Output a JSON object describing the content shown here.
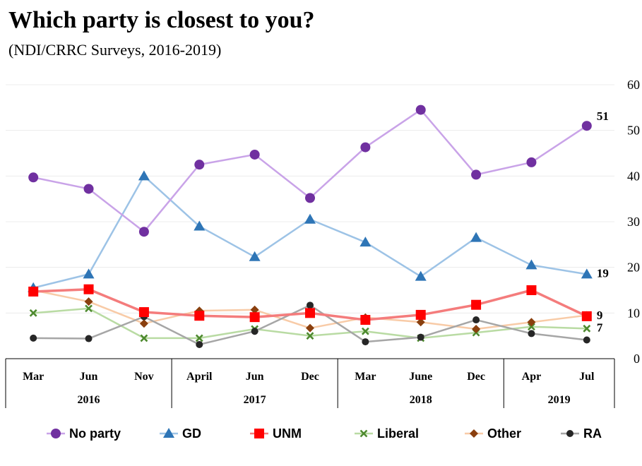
{
  "chart_data": {
    "type": "line",
    "title": "Which party is closest to you?",
    "subtitle": "(NDI/CRRC Surveys, 2016-2019)",
    "xlabel": "",
    "ylabel": "",
    "ylim": [
      0,
      60
    ],
    "yticks": [
      0,
      10,
      20,
      30,
      40,
      50,
      60
    ],
    "grid": true,
    "legend_position": "bottom",
    "categories": [
      "Mar",
      "Jun",
      "Nov",
      "April",
      "Jun",
      "Dec",
      "Mar",
      "June",
      "Dec",
      "Apr",
      "Jul"
    ],
    "year_groups": [
      {
        "label": "2016",
        "count": 3
      },
      {
        "label": "2017",
        "count": 3
      },
      {
        "label": "2018",
        "count": 3
      },
      {
        "label": "2019",
        "count": 2
      }
    ],
    "series": [
      {
        "name": "Liberal",
        "color": "#b9dba3",
        "marker_color": "#4e8a2f",
        "marker": "x",
        "values": [
          10,
          11,
          4.5,
          4.5,
          6.5,
          5,
          6,
          4.5,
          5.7,
          7,
          6.6
        ],
        "end_label": "7"
      },
      {
        "name": "Other",
        "color": "#f8cba7",
        "marker_color": "#8a3f0e",
        "marker": "diamond",
        "values": [
          15,
          12.5,
          7.7,
          10.5,
          10.7,
          6.7,
          9,
          8,
          6.5,
          8,
          9.5
        ],
        "end_label": ""
      },
      {
        "name": "RA",
        "color": "#a6a6a6",
        "marker_color": "#262626",
        "marker": "circle-small",
        "values": [
          4.5,
          4.4,
          9.2,
          3.1,
          6,
          11.7,
          3.7,
          4.7,
          8.5,
          5.5,
          4.1
        ],
        "end_label": ""
      },
      {
        "name": "GD",
        "color": "#9dc3e6",
        "marker_color": "#2e75b6",
        "marker": "triangle",
        "values": [
          15.5,
          18.5,
          40,
          29,
          22.3,
          30.5,
          25.5,
          18,
          26.5,
          20.5,
          18.5
        ],
        "end_label": "19"
      },
      {
        "name": "UNM",
        "color": "#f47c7c",
        "marker_color": "#ff0000",
        "marker": "square",
        "values": [
          14.7,
          15.2,
          10.2,
          9.4,
          9.1,
          10,
          8.5,
          9.6,
          11.8,
          15,
          9.3
        ],
        "end_label": "9"
      },
      {
        "name": "No party",
        "color": "#c9a3e8",
        "marker_color": "#7030a0",
        "marker": "circle",
        "values": [
          39.7,
          37.2,
          27.8,
          42.5,
          44.7,
          35.2,
          46.3,
          54.5,
          40.3,
          43,
          51
        ],
        "end_label": "51"
      }
    ],
    "legend_order": [
      "No party",
      "GD",
      "UNM",
      "Liberal",
      "Other",
      "RA"
    ]
  }
}
